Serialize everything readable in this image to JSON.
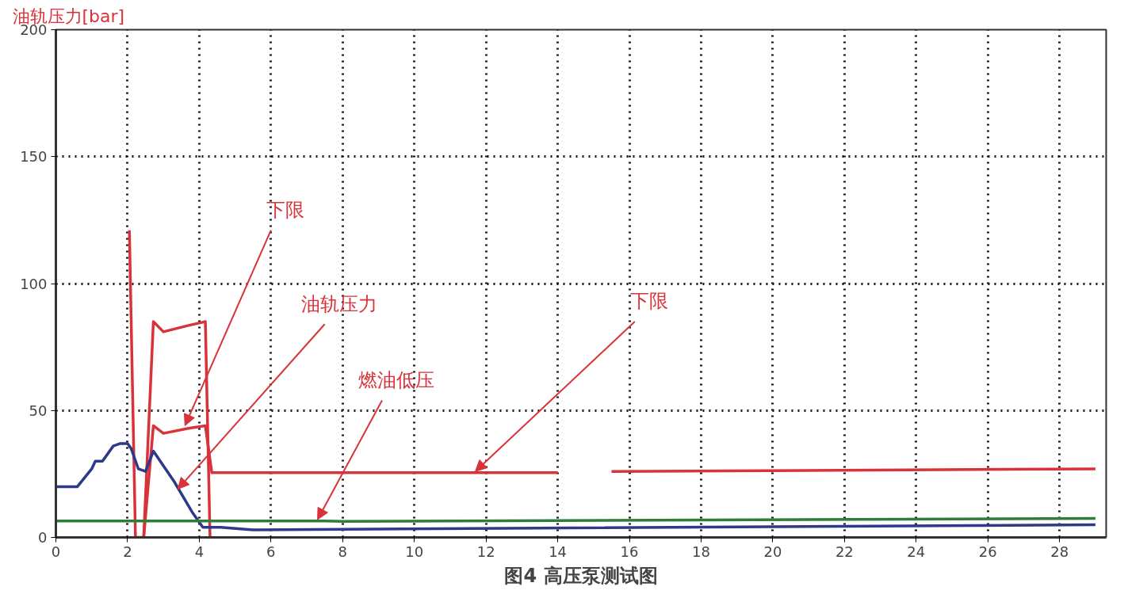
{
  "chart_data": {
    "type": "line",
    "title": "图4 高压泵测试图",
    "ylabel": "油轨压力[bar]",
    "xlim": [
      0,
      29.3
    ],
    "ylim": [
      0,
      200
    ],
    "xticks": [
      0,
      2,
      4,
      6,
      8,
      10,
      12,
      14,
      16,
      18,
      20,
      22,
      24,
      26,
      28
    ],
    "yticks": [
      0,
      50,
      100,
      150,
      200
    ],
    "grid": true,
    "line_style": "solid",
    "series": [
      {
        "color": "#d8333a",
        "x": [
          2.05,
          2.22,
          2.45,
          2.72,
          3.0,
          3.7,
          4.17,
          4.3
        ],
        "values": [
          121,
          0,
          0,
          85,
          81,
          83.5,
          85,
          0
        ]
      },
      {
        "color": "#d8333a",
        "x": [
          2.45,
          2.72,
          3.0,
          3.7,
          4.17,
          4.35,
          14,
          14.5,
          15.5,
          29
        ],
        "values": [
          0,
          44,
          41,
          43,
          44,
          25.5,
          25.5,
          null,
          26,
          27
        ]
      },
      {
        "color": "#2e3a87",
        "x": [
          0,
          0.6,
          1.0,
          1.1,
          1.3,
          1.6,
          1.8,
          2.0,
          2.1,
          2.3,
          2.5,
          2.72,
          3.3,
          3.8,
          4.1,
          4.6,
          5.5,
          29
        ],
        "values": [
          20,
          20,
          27,
          30,
          30,
          36,
          37,
          37,
          35,
          27,
          26,
          34,
          22,
          10,
          4,
          4,
          3,
          5
        ]
      },
      {
        "color": "#2e7d3a",
        "x": [
          0,
          7.5,
          8.0,
          29
        ],
        "values": [
          6.5,
          6.5,
          6.3,
          7.5
        ]
      }
    ],
    "annotations": [
      {
        "text": "下限",
        "x": 3.6,
        "y": 44
      },
      {
        "text": "油轨压力",
        "x": 3.4,
        "y": 19
      },
      {
        "text": "燃油低压",
        "x": 7.3,
        "y": 7
      },
      {
        "text": "下限",
        "x": 11.7,
        "y": 26
      }
    ]
  }
}
